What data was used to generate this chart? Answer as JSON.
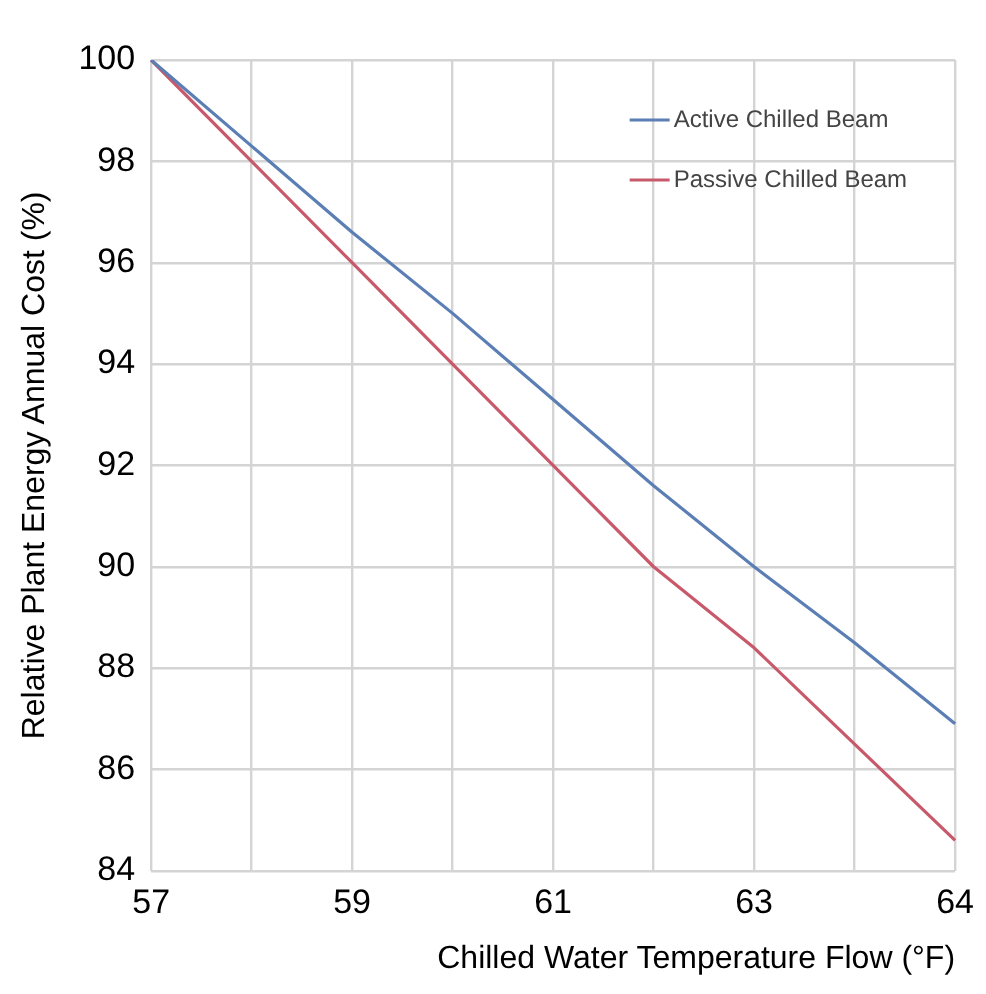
{
  "chart_data": {
    "type": "line",
    "xlabel": "Chilled Water Temperature Flow (°F)",
    "ylabel": "Relative Plant Energy Annual Cost (%)",
    "categories": [
      "57",
      null,
      "59",
      null,
      "61",
      null,
      "63",
      null,
      "64"
    ],
    "series": [
      {
        "name": "Active Chilled Beam",
        "color": "#5b7fb5",
        "values": [
          100,
          98.3,
          96.6,
          95.0,
          93.3,
          91.6,
          90.0,
          88.5,
          86.9
        ]
      },
      {
        "name": "Passive Chilled Beam",
        "color": "#c8596a",
        "values": [
          100,
          98.0,
          96.0,
          94.0,
          92.0,
          90.0,
          88.4,
          86.5,
          84.6
        ]
      }
    ],
    "ylim": [
      84,
      100
    ],
    "yticks": [
      84,
      86,
      88,
      90,
      92,
      94,
      96,
      98,
      100
    ],
    "grid": true,
    "legend": "top right",
    "marker": "none",
    "line_style": "solid"
  }
}
